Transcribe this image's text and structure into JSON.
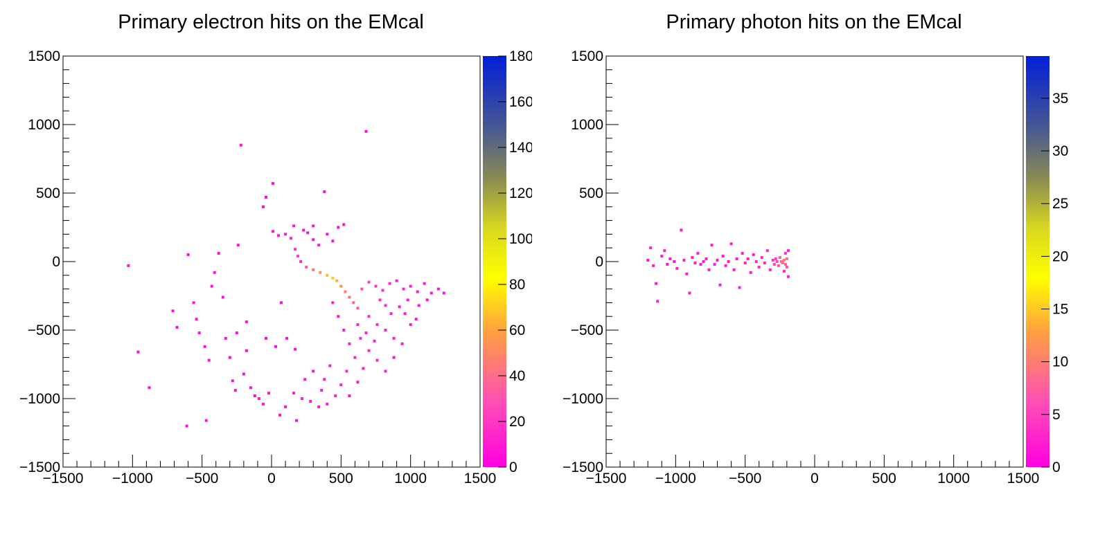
{
  "chart_data": [
    {
      "type": "heatmap",
      "title": "Primary electron hits on the EMcal",
      "xlabel": "",
      "ylabel": "",
      "xlim": [
        -1500,
        1500
      ],
      "ylim": [
        -1500,
        1500
      ],
      "x_ticks": [
        "−1500",
        "−1000",
        "−500",
        "0",
        "500",
        "1000",
        "1500"
      ],
      "y_ticks": [
        "−1500",
        "−1000",
        "−500",
        "0",
        "500",
        "1000",
        "1500"
      ],
      "colorbar": {
        "min": 0,
        "max": 180,
        "ticks": [
          "0",
          "20",
          "40",
          "60",
          "80",
          "100",
          "120",
          "140",
          "160",
          "180"
        ]
      },
      "points": [
        [
          -1030,
          -30,
          8
        ],
        [
          -960,
          -660,
          6
        ],
        [
          -880,
          -920,
          6
        ],
        [
          -710,
          -360,
          5
        ],
        [
          -680,
          -480,
          5
        ],
        [
          -610,
          -1200,
          5
        ],
        [
          -470,
          -1160,
          6
        ],
        [
          -600,
          50,
          5
        ],
        [
          -560,
          -300,
          6
        ],
        [
          -540,
          -420,
          7
        ],
        [
          -520,
          -520,
          6
        ],
        [
          -480,
          -620,
          6
        ],
        [
          -450,
          -720,
          5
        ],
        [
          -430,
          -180,
          5
        ],
        [
          -410,
          -80,
          6
        ],
        [
          -380,
          60,
          6
        ],
        [
          -350,
          -260,
          7
        ],
        [
          -330,
          -560,
          6
        ],
        [
          -300,
          -700,
          5
        ],
        [
          -280,
          -870,
          6
        ],
        [
          -260,
          -940,
          5
        ],
        [
          -240,
          120,
          6
        ],
        [
          -220,
          850,
          5
        ],
        [
          -200,
          -820,
          6
        ],
        [
          -180,
          -650,
          6
        ],
        [
          -150,
          -920,
          7
        ],
        [
          -120,
          -980,
          8
        ],
        [
          -90,
          -1000,
          7
        ],
        [
          -60,
          -1040,
          9
        ],
        [
          -20,
          -960,
          8
        ],
        [
          10,
          570,
          5
        ],
        [
          10,
          220,
          7
        ],
        [
          50,
          190,
          9
        ],
        [
          100,
          200,
          8
        ],
        [
          140,
          170,
          10
        ],
        [
          170,
          90,
          16
        ],
        [
          190,
          40,
          22
        ],
        [
          210,
          0,
          18
        ],
        [
          160,
          260,
          6
        ],
        [
          230,
          230,
          6
        ],
        [
          260,
          210,
          7
        ],
        [
          300,
          160,
          6
        ],
        [
          340,
          120,
          7
        ],
        [
          400,
          200,
          5
        ],
        [
          440,
          150,
          6
        ],
        [
          480,
          250,
          5
        ],
        [
          520,
          270,
          5
        ],
        [
          380,
          510,
          5
        ],
        [
          680,
          950,
          5
        ],
        [
          -60,
          400,
          5
        ],
        [
          -40,
          470,
          5
        ],
        [
          300,
          260,
          6
        ],
        [
          250,
          -40,
          30
        ],
        [
          300,
          -60,
          40
        ],
        [
          350,
          -80,
          55
        ],
        [
          400,
          -100,
          65
        ],
        [
          440,
          -120,
          70
        ],
        [
          470,
          -140,
          62
        ],
        [
          500,
          -180,
          55
        ],
        [
          530,
          -220,
          48
        ],
        [
          560,
          -260,
          42
        ],
        [
          590,
          -300,
          36
        ],
        [
          620,
          -340,
          30
        ],
        [
          650,
          -200,
          28
        ],
        [
          700,
          -150,
          22
        ],
        [
          750,
          -180,
          18
        ],
        [
          800,
          -210,
          16
        ],
        [
          850,
          -160,
          14
        ],
        [
          900,
          -140,
          12
        ],
        [
          950,
          -200,
          12
        ],
        [
          1000,
          -180,
          10
        ],
        [
          1050,
          -220,
          9
        ],
        [
          1100,
          -160,
          8
        ],
        [
          1150,
          -230,
          8
        ],
        [
          1200,
          -200,
          7
        ],
        [
          1240,
          -230,
          7
        ],
        [
          700,
          -400,
          16
        ],
        [
          760,
          -460,
          14
        ],
        [
          820,
          -500,
          12
        ],
        [
          880,
          -560,
          11
        ],
        [
          940,
          -600,
          10
        ],
        [
          1000,
          -460,
          9
        ],
        [
          860,
          -380,
          11
        ],
        [
          920,
          -330,
          10
        ],
        [
          980,
          -280,
          9
        ],
        [
          1060,
          -320,
          8
        ],
        [
          1120,
          -280,
          7
        ],
        [
          640,
          -560,
          14
        ],
        [
          700,
          -650,
          12
        ],
        [
          760,
          -720,
          10
        ],
        [
          820,
          -800,
          9
        ],
        [
          880,
          -700,
          9
        ],
        [
          600,
          -700,
          12
        ],
        [
          540,
          -800,
          11
        ],
        [
          500,
          -900,
          10
        ],
        [
          460,
          -980,
          12
        ],
        [
          400,
          -1040,
          10
        ],
        [
          340,
          -1060,
          9
        ],
        [
          280,
          -1020,
          10
        ],
        [
          220,
          -1000,
          9
        ],
        [
          160,
          -960,
          8
        ],
        [
          100,
          -1060,
          7
        ],
        [
          60,
          -1120,
          6
        ],
        [
          180,
          -1160,
          5
        ],
        [
          360,
          -940,
          8
        ],
        [
          560,
          -980,
          7
        ],
        [
          620,
          -880,
          8
        ],
        [
          660,
          -780,
          9
        ],
        [
          560,
          -600,
          10
        ],
        [
          520,
          -500,
          9
        ],
        [
          480,
          -400,
          8
        ],
        [
          440,
          -300,
          9
        ],
        [
          620,
          -460,
          12
        ],
        [
          680,
          -520,
          11
        ],
        [
          740,
          -580,
          10
        ],
        [
          780,
          -280,
          15
        ],
        [
          820,
          -320,
          13
        ],
        [
          960,
          -380,
          9
        ],
        [
          1040,
          -420,
          8
        ],
        [
          300,
          -800,
          7
        ],
        [
          240,
          -860,
          7
        ],
        [
          380,
          -860,
          8
        ],
        [
          420,
          -760,
          9
        ],
        [
          -40,
          -560,
          5
        ],
        [
          30,
          -620,
          5
        ],
        [
          110,
          -560,
          6
        ],
        [
          170,
          -640,
          6
        ],
        [
          -250,
          -520,
          6
        ],
        [
          -180,
          -440,
          5
        ],
        [
          70,
          -300,
          5
        ]
      ]
    },
    {
      "type": "heatmap",
      "title": "Primary photon hits on the EMcal",
      "xlabel": "",
      "ylabel": "",
      "xlim": [
        -1500,
        1500
      ],
      "ylim": [
        -1500,
        1500
      ],
      "x_ticks": [
        "−1500",
        "−1000",
        "−500",
        "0",
        "500",
        "1000",
        "1500"
      ],
      "y_ticks": [
        "−1500",
        "−1000",
        "−500",
        "0",
        "500",
        "1000",
        "1500"
      ],
      "colorbar": {
        "min": 0,
        "max": 39,
        "ticks": [
          "0",
          "5",
          "10",
          "15",
          "20",
          "25",
          "30",
          "35"
        ]
      },
      "points": [
        [
          -1200,
          10,
          2
        ],
        [
          -1180,
          100,
          2
        ],
        [
          -1160,
          -30,
          2
        ],
        [
          -1140,
          -160,
          2
        ],
        [
          -1130,
          -290,
          2
        ],
        [
          -1100,
          40,
          2
        ],
        [
          -1080,
          80,
          2
        ],
        [
          -1060,
          -20,
          2
        ],
        [
          -1040,
          20,
          2
        ],
        [
          -1010,
          0,
          2
        ],
        [
          -990,
          -50,
          2
        ],
        [
          -960,
          230,
          2
        ],
        [
          -940,
          10,
          2
        ],
        [
          -920,
          -90,
          2
        ],
        [
          -900,
          -230,
          2
        ],
        [
          -880,
          30,
          2
        ],
        [
          -860,
          -10,
          2
        ],
        [
          -840,
          60,
          2
        ],
        [
          -820,
          -20,
          2
        ],
        [
          -800,
          0,
          2
        ],
        [
          -780,
          20,
          2
        ],
        [
          -760,
          -60,
          2
        ],
        [
          -740,
          120,
          2
        ],
        [
          -720,
          -20,
          2
        ],
        [
          -700,
          10,
          2
        ],
        [
          -680,
          -170,
          2
        ],
        [
          -660,
          40,
          2
        ],
        [
          -640,
          -30,
          2
        ],
        [
          -620,
          0,
          2
        ],
        [
          -600,
          130,
          2
        ],
        [
          -580,
          -60,
          2
        ],
        [
          -560,
          20,
          2
        ],
        [
          -540,
          -190,
          2
        ],
        [
          -520,
          60,
          2
        ],
        [
          -500,
          -10,
          2
        ],
        [
          -480,
          20,
          2
        ],
        [
          -460,
          -80,
          2
        ],
        [
          -440,
          50,
          2
        ],
        [
          -420,
          0,
          3
        ],
        [
          -400,
          -40,
          3
        ],
        [
          -380,
          30,
          3
        ],
        [
          -360,
          -10,
          3
        ],
        [
          -340,
          80,
          3
        ],
        [
          -320,
          -60,
          3
        ],
        [
          -300,
          10,
          4
        ],
        [
          -290,
          -20,
          5
        ],
        [
          -280,
          20,
          5
        ],
        [
          -270,
          0,
          6
        ],
        [
          -260,
          -30,
          6
        ],
        [
          -250,
          30,
          7
        ],
        [
          -240,
          0,
          8
        ],
        [
          -230,
          -10,
          9
        ],
        [
          -220,
          10,
          10
        ],
        [
          -210,
          -20,
          8
        ],
        [
          -200,
          20,
          9
        ],
        [
          -200,
          -40,
          6
        ],
        [
          -210,
          60,
          4
        ],
        [
          -220,
          -70,
          3
        ],
        [
          -190,
          80,
          2
        ],
        [
          -190,
          -110,
          2
        ]
      ]
    }
  ]
}
